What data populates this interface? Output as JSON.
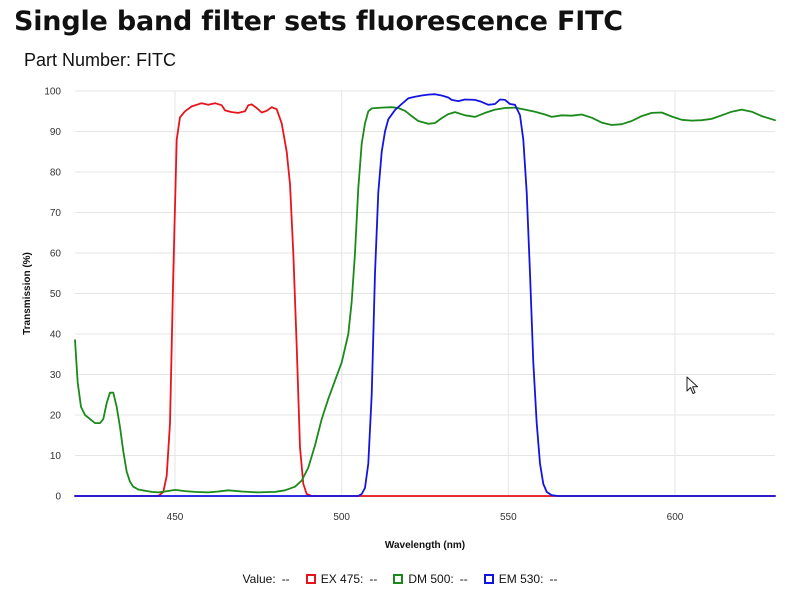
{
  "page": {
    "title": "Single band filter sets fluorescence FITC",
    "part_number_label": "Part Number:",
    "part_number": "FITC"
  },
  "legend": {
    "value_label": "Value:",
    "value_placeholder": "--",
    "items": [
      {
        "name": "EX 475:",
        "value": "--",
        "color": "#e8141c"
      },
      {
        "name": "DM 500:",
        "value": "--",
        "color": "#1a8a1a"
      },
      {
        "name": "EM 530:",
        "value": "--",
        "color": "#1414e0"
      }
    ]
  },
  "chart_data": {
    "type": "line",
    "xlabel": "Wavelength (nm)",
    "ylabel": "Transmission (%)",
    "xlim": [
      420,
      630
    ],
    "ylim": [
      0,
      100
    ],
    "x_ticks": [
      450,
      500,
      550,
      600
    ],
    "y_ticks": [
      0,
      10,
      20,
      30,
      40,
      50,
      60,
      70,
      80,
      90,
      100
    ],
    "grid": true,
    "legend_position": "bottom",
    "series": [
      {
        "name": "EX 475",
        "color": "#e8141c",
        "points": [
          [
            420,
            0
          ],
          [
            445,
            0
          ],
          [
            446.5,
            1
          ],
          [
            447.5,
            5
          ],
          [
            448.5,
            18
          ],
          [
            449.5,
            55
          ],
          [
            450.5,
            88
          ],
          [
            451.5,
            93.5
          ],
          [
            453,
            95
          ],
          [
            455,
            96.2
          ],
          [
            458,
            97
          ],
          [
            460,
            96.6
          ],
          [
            462,
            97
          ],
          [
            464,
            96.5
          ],
          [
            465,
            95.2
          ],
          [
            467,
            94.8
          ],
          [
            469,
            94.6
          ],
          [
            471,
            95
          ],
          [
            472,
            96.5
          ],
          [
            473,
            96.7
          ],
          [
            474.5,
            95.8
          ],
          [
            476,
            94.7
          ],
          [
            477.5,
            95.1
          ],
          [
            479,
            96
          ],
          [
            480.5,
            95.5
          ],
          [
            482,
            92
          ],
          [
            483.5,
            85
          ],
          [
            484.5,
            77
          ],
          [
            485.5,
            60
          ],
          [
            486.5,
            37
          ],
          [
            487.5,
            12
          ],
          [
            488.5,
            3
          ],
          [
            489.5,
            0.5
          ],
          [
            491,
            0
          ],
          [
            630,
            0
          ]
        ]
      },
      {
        "name": "DM 500",
        "color": "#1a8a1a",
        "points": [
          [
            420,
            38.5
          ],
          [
            420.8,
            28
          ],
          [
            421.8,
            22
          ],
          [
            423,
            20
          ],
          [
            424.5,
            19
          ],
          [
            426,
            18
          ],
          [
            427.5,
            18
          ],
          [
            428.5,
            19
          ],
          [
            429.5,
            23
          ],
          [
            430.5,
            25.5
          ],
          [
            431.5,
            25.5
          ],
          [
            432.5,
            22
          ],
          [
            433.5,
            17
          ],
          [
            434.5,
            11
          ],
          [
            435.5,
            6
          ],
          [
            436.5,
            3.5
          ],
          [
            437.5,
            2.3
          ],
          [
            439,
            1.6
          ],
          [
            441,
            1.3
          ],
          [
            443,
            1
          ],
          [
            445,
            0.9
          ],
          [
            447,
            1.1
          ],
          [
            450,
            1.5
          ],
          [
            453,
            1.2
          ],
          [
            456,
            1
          ],
          [
            460,
            0.9
          ],
          [
            463,
            1.1
          ],
          [
            466,
            1.4
          ],
          [
            470,
            1.1
          ],
          [
            475,
            0.9
          ],
          [
            480,
            1
          ],
          [
            483,
            1.4
          ],
          [
            486,
            2.3
          ],
          [
            488,
            3.8
          ],
          [
            490,
            7
          ],
          [
            492,
            12.5
          ],
          [
            494,
            19
          ],
          [
            496,
            24
          ],
          [
            498,
            28.5
          ],
          [
            500,
            33
          ],
          [
            502,
            40
          ],
          [
            503,
            48
          ],
          [
            504,
            60
          ],
          [
            505,
            76
          ],
          [
            506,
            87
          ],
          [
            507,
            92
          ],
          [
            508,
            95
          ],
          [
            509,
            95.7
          ],
          [
            512,
            95.9
          ],
          [
            515,
            96
          ],
          [
            517,
            95.8
          ],
          [
            519,
            95.1
          ],
          [
            521,
            93.8
          ],
          [
            523,
            92.6
          ],
          [
            526,
            91.9
          ],
          [
            528,
            92.1
          ],
          [
            530,
            93.3
          ],
          [
            532,
            94.3
          ],
          [
            534,
            94.8
          ],
          [
            537,
            94
          ],
          [
            540,
            93.6
          ],
          [
            543,
            94.6
          ],
          [
            546,
            95.4
          ],
          [
            549,
            95.8
          ],
          [
            552,
            95.9
          ],
          [
            555,
            95.4
          ],
          [
            558,
            94.9
          ],
          [
            561,
            94.2
          ],
          [
            563,
            93.6
          ],
          [
            566,
            94
          ],
          [
            569,
            93.9
          ],
          [
            572,
            94.2
          ],
          [
            575,
            93.4
          ],
          [
            578,
            92.2
          ],
          [
            581,
            91.6
          ],
          [
            584,
            91.8
          ],
          [
            587,
            92.6
          ],
          [
            590,
            93.8
          ],
          [
            593,
            94.6
          ],
          [
            596,
            94.7
          ],
          [
            599,
            93.7
          ],
          [
            602,
            92.9
          ],
          [
            605,
            92.7
          ],
          [
            608,
            92.8
          ],
          [
            611,
            93.1
          ],
          [
            614,
            94
          ],
          [
            617,
            94.9
          ],
          [
            620,
            95.4
          ],
          [
            623,
            94.9
          ],
          [
            626,
            93.8
          ],
          [
            630,
            92.8
          ]
        ]
      },
      {
        "name": "EM 530",
        "color": "#1414e0",
        "points": [
          [
            420,
            0
          ],
          [
            505,
            0
          ],
          [
            506,
            0.5
          ],
          [
            507,
            2
          ],
          [
            508,
            8
          ],
          [
            509,
            25
          ],
          [
            510,
            55
          ],
          [
            511,
            75
          ],
          [
            512,
            85
          ],
          [
            513,
            90
          ],
          [
            514,
            93
          ],
          [
            516,
            95.3
          ],
          [
            518,
            96.8
          ],
          [
            520,
            98.2
          ],
          [
            522,
            98.6
          ],
          [
            524,
            98.9
          ],
          [
            526,
            99.1
          ],
          [
            528,
            99.2
          ],
          [
            530,
            98.9
          ],
          [
            532,
            98.4
          ],
          [
            533,
            97.8
          ],
          [
            535,
            97.5
          ],
          [
            537,
            97.9
          ],
          [
            540,
            97.8
          ],
          [
            542,
            97.3
          ],
          [
            544,
            96.6
          ],
          [
            546,
            96.8
          ],
          [
            547.5,
            97.9
          ],
          [
            549,
            97.8
          ],
          [
            550.5,
            96.8
          ],
          [
            552,
            96.6
          ],
          [
            553.5,
            94
          ],
          [
            554.5,
            88
          ],
          [
            555.5,
            75
          ],
          [
            556.5,
            55
          ],
          [
            557.5,
            33
          ],
          [
            558.5,
            18
          ],
          [
            559.5,
            8
          ],
          [
            560.5,
            3
          ],
          [
            561.5,
            1
          ],
          [
            563,
            0.2
          ],
          [
            565,
            0
          ],
          [
            630,
            0
          ]
        ]
      }
    ]
  }
}
